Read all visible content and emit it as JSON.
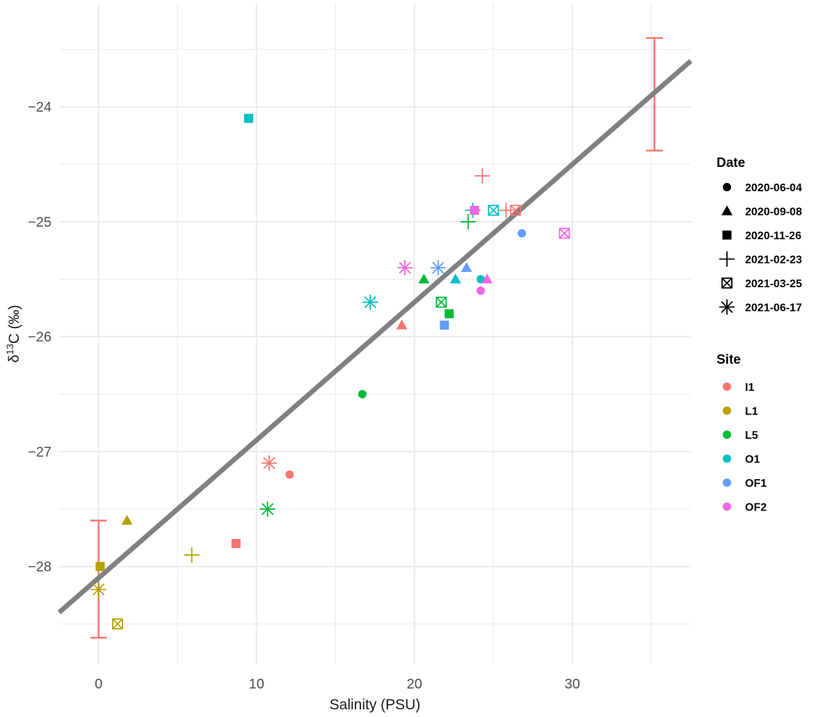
{
  "chart_data": {
    "type": "scatter",
    "xlabel": "Salinity (PSU)",
    "ylabel": {
      "base": "δ",
      "sup": "13",
      "rest": "C (‰)"
    },
    "xlim": [
      -2.5,
      37.5
    ],
    "ylim": [
      -28.85,
      -23.1
    ],
    "x_ticks": [
      0,
      10,
      20,
      30
    ],
    "y_ticks": [
      -28,
      -27,
      -26,
      -25,
      -24
    ],
    "grid": true,
    "colors": {
      "I1": "#F8766D",
      "L1": "#B79F00",
      "L5": "#00BA38",
      "O1": "#00BFC4",
      "OF1": "#619CFF",
      "OF2": "#F564E3"
    },
    "legend_date": {
      "title": "Date",
      "entries": [
        {
          "label": "2020-06-04",
          "shape": "circle"
        },
        {
          "label": "2020-09-08",
          "shape": "triangle"
        },
        {
          "label": "2020-11-26",
          "shape": "square"
        },
        {
          "label": "2021-02-23",
          "shape": "plus"
        },
        {
          "label": "2021-03-25",
          "shape": "boxx"
        },
        {
          "label": "2021-06-17",
          "shape": "star"
        }
      ]
    },
    "legend_site": {
      "title": "Site",
      "entries": [
        "I1",
        "L1",
        "L5",
        "O1",
        "OF1",
        "OF2"
      ]
    },
    "regression_line": {
      "x": [
        -2.5,
        37.5
      ],
      "y": [
        -28.4,
        -23.6
      ],
      "color": "#808080"
    },
    "error_bars": [
      {
        "x": 0,
        "ymin": -28.62,
        "ymax": -27.6,
        "color": "#F8766D"
      },
      {
        "x": 35.2,
        "ymin": -24.38,
        "ymax": -23.4,
        "color": "#F8766D"
      }
    ],
    "points": [
      {
        "site": "I1",
        "shape": "circle",
        "x": 12.1,
        "y": -27.2
      },
      {
        "site": "I1",
        "shape": "triangle",
        "x": 19.2,
        "y": -25.9
      },
      {
        "site": "I1",
        "shape": "square",
        "x": 8.7,
        "y": -27.8
      },
      {
        "site": "I1",
        "shape": "plus",
        "x": 24.3,
        "y": -24.6
      },
      {
        "site": "I1",
        "shape": "plus",
        "x": 25.8,
        "y": -24.9
      },
      {
        "site": "I1",
        "shape": "boxx",
        "x": 26.4,
        "y": -24.9
      },
      {
        "site": "I1",
        "shape": "star",
        "x": 10.8,
        "y": -27.1
      },
      {
        "site": "L1",
        "shape": "triangle",
        "x": 1.8,
        "y": -27.6
      },
      {
        "site": "L1",
        "shape": "square",
        "x": 0.1,
        "y": -28.0
      },
      {
        "site": "L1",
        "shape": "plus",
        "x": 5.9,
        "y": -27.9
      },
      {
        "site": "L1",
        "shape": "boxx",
        "x": 1.2,
        "y": -28.5
      },
      {
        "site": "L1",
        "shape": "star",
        "x": 0.0,
        "y": -28.2
      },
      {
        "site": "L5",
        "shape": "circle",
        "x": 16.7,
        "y": -26.5
      },
      {
        "site": "L5",
        "shape": "triangle",
        "x": 20.6,
        "y": -25.5
      },
      {
        "site": "L5",
        "shape": "square",
        "x": 22.2,
        "y": -25.8
      },
      {
        "site": "L5",
        "shape": "plus",
        "x": 23.4,
        "y": -25.0
      },
      {
        "site": "L5",
        "shape": "boxx",
        "x": 21.7,
        "y": -25.7
      },
      {
        "site": "L5",
        "shape": "star",
        "x": 10.7,
        "y": -27.5
      },
      {
        "site": "O1",
        "shape": "circle",
        "x": 24.2,
        "y": -25.5
      },
      {
        "site": "O1",
        "shape": "triangle",
        "x": 22.6,
        "y": -25.5
      },
      {
        "site": "O1",
        "shape": "square",
        "x": 9.5,
        "y": -24.1
      },
      {
        "site": "O1",
        "shape": "plus",
        "x": 23.7,
        "y": -24.9
      },
      {
        "site": "O1",
        "shape": "boxx",
        "x": 25.0,
        "y": -24.9
      },
      {
        "site": "O1",
        "shape": "star",
        "x": 17.2,
        "y": -25.7
      },
      {
        "site": "OF1",
        "shape": "circle",
        "x": 26.8,
        "y": -25.1
      },
      {
        "site": "OF1",
        "shape": "triangle",
        "x": 23.3,
        "y": -25.4
      },
      {
        "site": "OF1",
        "shape": "square",
        "x": 21.9,
        "y": -25.9
      },
      {
        "site": "OF1",
        "shape": "star",
        "x": 21.5,
        "y": -25.4
      },
      {
        "site": "OF2",
        "shape": "circle",
        "x": 24.2,
        "y": -25.6
      },
      {
        "site": "OF2",
        "shape": "triangle",
        "x": 24.6,
        "y": -25.5
      },
      {
        "site": "OF2",
        "shape": "square",
        "x": 23.8,
        "y": -24.9
      },
      {
        "site": "OF2",
        "shape": "boxx",
        "x": 29.5,
        "y": -25.1
      },
      {
        "site": "OF2",
        "shape": "star",
        "x": 19.4,
        "y": -25.4
      }
    ]
  }
}
